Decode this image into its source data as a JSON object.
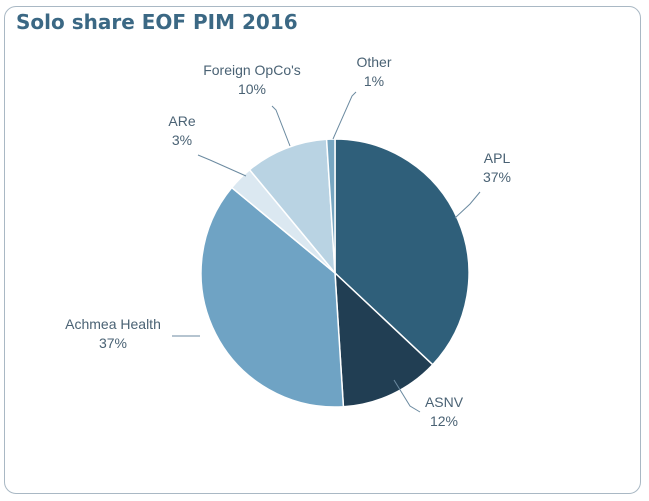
{
  "chart_data": {
    "type": "pie",
    "title": "Solo share EOF PIM 2016",
    "slices": [
      {
        "label": "APL",
        "value": 37,
        "display": "37%",
        "color": "#2f5f7a"
      },
      {
        "label": "ASNV",
        "value": 12,
        "display": "12%",
        "color": "#213e53"
      },
      {
        "label": "Achmea Health",
        "value": 37,
        "display": "37%",
        "color": "#6fa3c4"
      },
      {
        "label": "ARe",
        "value": 3,
        "display": "3%",
        "color": "#dbe8f1"
      },
      {
        "label": "Foreign OpCo's",
        "value": 10,
        "display": "10%",
        "color": "#b9d3e3"
      },
      {
        "label": "Other",
        "value": 1,
        "display": "1%",
        "color": "#77a6c1"
      }
    ],
    "legend": "none"
  }
}
